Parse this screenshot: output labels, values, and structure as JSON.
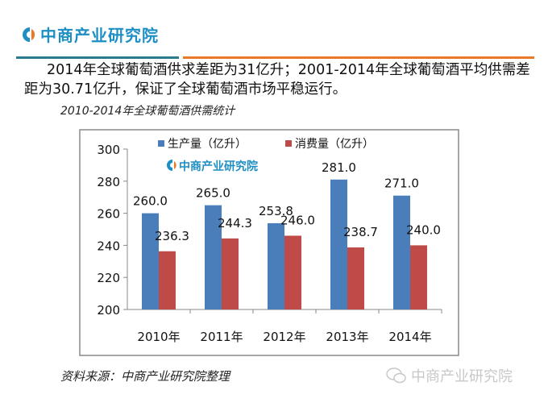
{
  "header": {
    "logo_text": "中商产业研究院"
  },
  "headline": "2014年全球葡萄酒供求差距为31亿升；2001-2014年全球葡萄酒平均供需差距为30.71亿升，保证了全球葡萄酒市场平稳运行。",
  "chart_data": {
    "type": "bar",
    "title": "2010-2014年全球葡萄酒供需统计",
    "categories": [
      "2010年",
      "2011年",
      "2012年",
      "2013年",
      "2014年"
    ],
    "series": [
      {
        "name": "生产量（亿升）",
        "color": "#4a7ebb",
        "values": [
          260.0,
          265.0,
          253.8,
          281.0,
          271.0
        ],
        "labels": [
          "260.0",
          "265.0",
          "253.8",
          "281.0",
          "271.0"
        ]
      },
      {
        "name": "消费量（亿升）",
        "color": "#be4b48",
        "values": [
          236.3,
          244.3,
          246.0,
          238.7,
          240.0
        ],
        "labels": [
          "236.3",
          "244.3",
          "246.0",
          "238.7",
          "240.0"
        ]
      }
    ],
    "ylim": [
      200,
      300
    ],
    "yticks": [
      "200",
      "220",
      "240",
      "260",
      "280",
      "300"
    ],
    "legend": "top",
    "watermark": "中商产业研究院",
    "xlabel": "",
    "ylabel": ""
  },
  "footer": {
    "source": "资料来源：中商产业研究院整理",
    "watermark": "中商产业研究院"
  }
}
